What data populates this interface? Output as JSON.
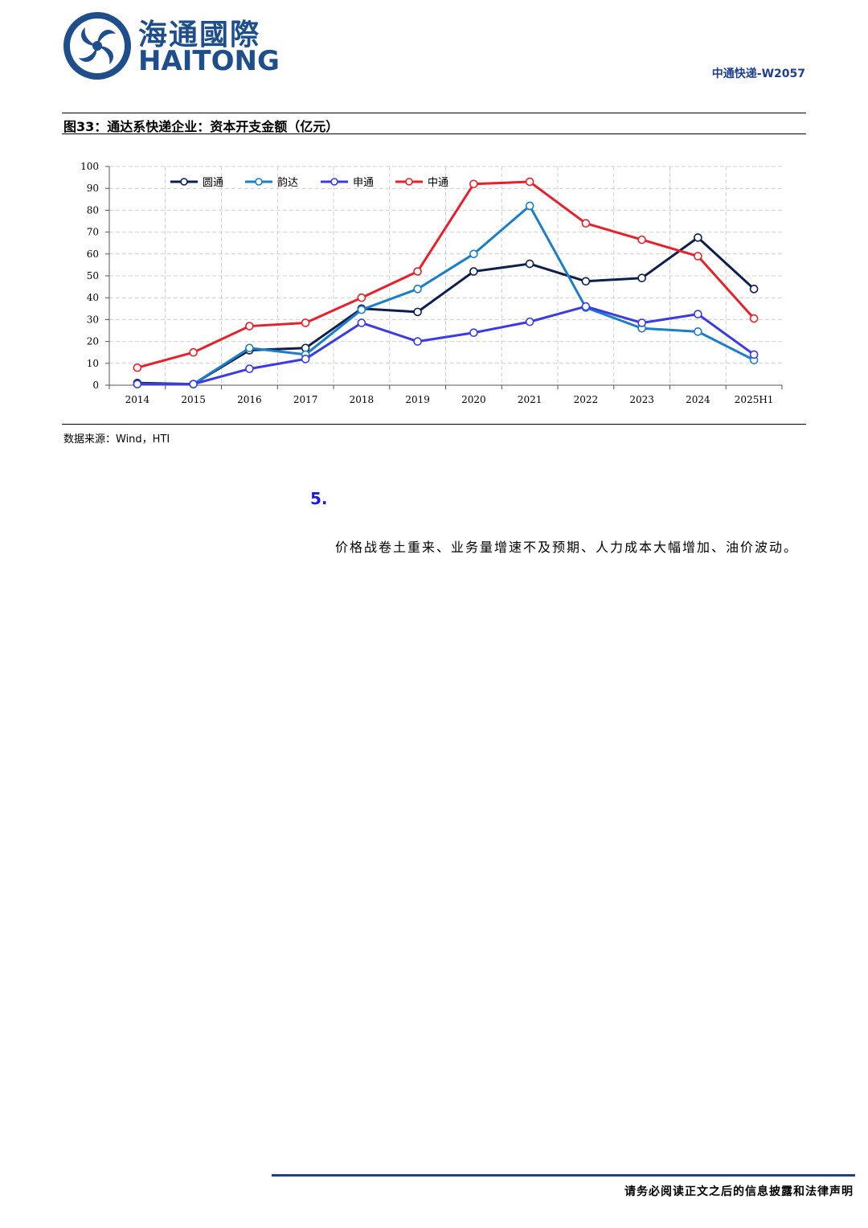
{
  "header": {
    "logo_cn": "海通國際",
    "logo_en": "HAITONG",
    "report_code": "中通快递-W2057"
  },
  "figure": {
    "title": "图33：通达系快递企业：资本开支金额（亿元）",
    "source": "数据来源：Wind，HTI"
  },
  "chart_data": {
    "type": "line",
    "title": "通达系快递企业：资本开支金额（亿元）",
    "xlabel": "",
    "ylabel": "",
    "ylim": [
      0,
      100
    ],
    "yticks": [
      0,
      10,
      20,
      30,
      40,
      50,
      60,
      70,
      80,
      90,
      100
    ],
    "grid": true,
    "legend_position": "top-left",
    "categories": [
      "2014",
      "2015",
      "2016",
      "2017",
      "2018",
      "2019",
      "2020",
      "2021",
      "2022",
      "2023",
      "2024",
      "2025H1"
    ],
    "series": [
      {
        "name": "圆通",
        "color": "#0d1f4f",
        "values": [
          1,
          0.5,
          16,
          17,
          35,
          33.5,
          52,
          55.5,
          47.5,
          49,
          67.5,
          44
        ]
      },
      {
        "name": "韵达",
        "color": "#1a7ec8",
        "values": [
          0.5,
          0.5,
          17,
          14,
          34.5,
          44,
          60,
          82,
          35.5,
          26,
          24.5,
          11.5
        ]
      },
      {
        "name": "申通",
        "color": "#3b3be6",
        "values": [
          0.5,
          0.5,
          7.5,
          12,
          28.5,
          20,
          24,
          29,
          36,
          28.5,
          32.5,
          14
        ]
      },
      {
        "name": "中通",
        "color": "#e8202a",
        "values": [
          8,
          15,
          27,
          28.5,
          40,
          52,
          92,
          93,
          74,
          66.5,
          59,
          30.5
        ]
      }
    ]
  },
  "body": {
    "section_no": "5.",
    "paragraph": "价格战卷土重来、业务量增速不及预期、人力成本大幅增加、油价波动。"
  },
  "footer": {
    "disclaimer": "请务必阅读正文之后的信息披露和法律声明"
  }
}
